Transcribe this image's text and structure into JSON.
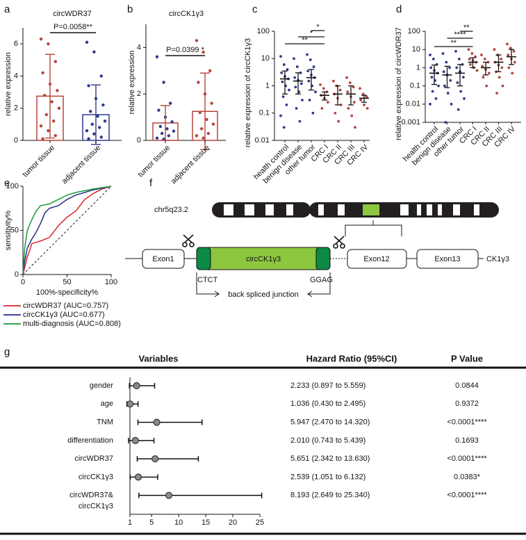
{
  "chart_data": [
    {
      "type": "bar_scatter",
      "panel_label": "a",
      "title": "circWDR37",
      "ylabel": "relative expression",
      "ylim": [
        0,
        7
      ],
      "yticks": [
        0,
        2,
        4,
        6
      ],
      "annotation": "P=0.0058**",
      "groups": [
        {
          "label": "tumor tissue",
          "color": "#b5443c",
          "dot_color": "#b5443c",
          "mean": 2.75,
          "sd": 2.6,
          "values": [
            6.3,
            6.0,
            4.9,
            4.2,
            3.5,
            3.1,
            2.8,
            2.4,
            2.0,
            1.6,
            1.2,
            0.9,
            0.6,
            0.3,
            0.1
          ]
        },
        {
          "label": "adjacent tissue",
          "color": "#2d3a8c",
          "dot_color": "#2d3a8c",
          "mean": 1.6,
          "sd": 1.85,
          "values": [
            6.1,
            5.5,
            4.0,
            3.4,
            2.6,
            2.2,
            1.8,
            1.5,
            1.2,
            1.0,
            0.8,
            0.6,
            0.4,
            0.2,
            0.1
          ]
        }
      ]
    },
    {
      "type": "bar_scatter",
      "panel_label": "b",
      "title": "circCK1γ3",
      "ylabel": "relative expression",
      "ylim": [
        0,
        5
      ],
      "yticks": [
        0,
        2,
        4
      ],
      "annotation": "P=0.0399 *",
      "groups": [
        {
          "label": "tumor tissue",
          "color": "#b5443c",
          "dot_color": "#2d3a8c",
          "mean": 0.75,
          "sd": 0.75,
          "values": [
            3.6,
            2.5,
            1.6,
            1.3,
            1.0,
            0.8,
            0.6,
            0.5,
            0.4,
            0.3,
            0.2,
            0.1,
            0.05
          ]
        },
        {
          "label": "adjacent tissue",
          "color": "#b5443c",
          "dot_color": "#b5443c",
          "mean": 1.25,
          "sd": 1.65,
          "values": [
            4.3,
            3.8,
            3.0,
            2.5,
            2.0,
            1.6,
            1.2,
            0.9,
            0.7,
            0.5,
            0.3,
            0.2,
            0.1
          ]
        }
      ]
    },
    {
      "type": "dot_log",
      "panel_label": "c",
      "ylabel": "relative expression of circCK1γ3",
      "log_scale": true,
      "ylim": [
        0.01,
        100
      ],
      "yticks": [
        0.01,
        0.1,
        1,
        10,
        100
      ],
      "annotations": [
        "*",
        "*",
        "**"
      ],
      "groups": [
        {
          "label": "health control",
          "color": "#2d3a8c",
          "mean": 1.8,
          "lower": 0.5,
          "upper": 3.5,
          "values": [
            12,
            6,
            4,
            3,
            2.2,
            1.8,
            1.4,
            1,
            0.7,
            0.4,
            0.2,
            0.08,
            0.03
          ]
        },
        {
          "label": "benign disease",
          "color": "#2d3a8c",
          "mean": 1.5,
          "lower": 0.5,
          "upper": 3,
          "values": [
            10,
            5,
            3,
            2,
            1.6,
            1.2,
            0.9,
            0.6,
            0.3,
            0.15,
            0.05
          ]
        },
        {
          "label": "other tumor",
          "color": "#2d3a8c",
          "mean": 2,
          "lower": 0.7,
          "upper": 4,
          "values": [
            14,
            9,
            5,
            3.5,
            2.5,
            2,
            1.5,
            1,
            0.6,
            0.3,
            0.1
          ]
        },
        {
          "label": "CRC I",
          "color": "#b5443c",
          "mean": 0.45,
          "lower": 0.3,
          "upper": 0.6,
          "values": [
            1.1,
            0.8,
            0.6,
            0.45,
            0.35,
            0.25,
            0.15
          ]
        },
        {
          "label": "CRC II",
          "color": "#b5443c",
          "mean": 0.5,
          "lower": 0.2,
          "upper": 1,
          "values": [
            1.5,
            1,
            0.7,
            0.5,
            0.35,
            0.2,
            0.1,
            0.05
          ]
        },
        {
          "label": "CRC III",
          "color": "#b5443c",
          "mean": 0.5,
          "lower": 0.2,
          "upper": 1,
          "values": [
            2,
            1.3,
            0.9,
            0.6,
            0.4,
            0.25,
            0.15,
            0.08,
            0.03
          ]
        },
        {
          "label": "CRC IV",
          "color": "#b5443c",
          "mean": 0.35,
          "lower": 0.25,
          "upper": 0.45,
          "values": [
            0.8,
            0.5,
            0.4,
            0.3,
            0.2,
            0.15
          ]
        }
      ]
    },
    {
      "type": "dot_log",
      "panel_label": "d",
      "ylabel": "relative expression of circWDR37",
      "log_scale": true,
      "ylim": [
        0.001,
        100
      ],
      "yticks": [
        0.001,
        0.01,
        0.1,
        1,
        10,
        100
      ],
      "annotations": [
        "**",
        "****",
        "**"
      ],
      "groups": [
        {
          "label": "health control",
          "color": "#2d3a8c",
          "mean": 0.5,
          "lower": 0.12,
          "upper": 1.4,
          "values": [
            5,
            3,
            1.5,
            1,
            0.7,
            0.5,
            0.3,
            0.2,
            0.1,
            0.05,
            0.02,
            0.01
          ]
        },
        {
          "label": "benign disease",
          "color": "#2d3a8c",
          "mean": 0.4,
          "lower": 0.08,
          "upper": 1.2,
          "values": [
            6,
            2,
            1,
            0.6,
            0.4,
            0.2,
            0.1,
            0.04,
            0.01,
            0.001
          ]
        },
        {
          "label": "other tumor",
          "color": "#2d3a8c",
          "mean": 0.5,
          "lower": 0.1,
          "upper": 1.5,
          "values": [
            8,
            3,
            1.5,
            1,
            0.6,
            0.3,
            0.15,
            0.05,
            0.02,
            0.005
          ]
        },
        {
          "label": "CRC I",
          "color": "#b5443c",
          "mean": 2,
          "lower": 1,
          "upper": 3.5,
          "values": [
            10,
            6,
            4,
            3,
            2.5,
            2,
            1.5,
            1,
            0.7
          ]
        },
        {
          "label": "CRC II",
          "color": "#b5443c",
          "mean": 1,
          "lower": 0.4,
          "upper": 2,
          "values": [
            5,
            3,
            2,
            1.2,
            0.8,
            0.5,
            0.3,
            0.1
          ]
        },
        {
          "label": "CRC III",
          "color": "#b5443c",
          "mean": 2,
          "lower": 0.6,
          "upper": 5,
          "values": [
            10,
            5,
            3,
            2,
            1.4,
            1,
            0.6,
            0.3,
            0.1,
            0.04
          ]
        },
        {
          "label": "CRC IV",
          "color": "#b5443c",
          "mean": 4,
          "lower": 1.5,
          "upper": 10,
          "values": [
            20,
            12,
            8,
            5,
            3,
            2,
            1,
            0.5
          ]
        }
      ]
    },
    {
      "type": "roc",
      "panel_label": "e",
      "xlabel": "100%-specificity%",
      "ylabel": "sensitivity%",
      "xlim": [
        0,
        100
      ],
      "ylim": [
        0,
        100
      ],
      "xticks": [
        0,
        50,
        100
      ],
      "yticks": [
        0,
        50,
        100
      ],
      "series": [
        {
          "name": "circWDR37 (AUC=0.757)",
          "color": "#d7262b",
          "x": [
            0,
            2,
            5,
            8,
            10,
            20,
            30,
            40,
            50,
            60,
            70,
            80,
            90,
            100
          ],
          "y": [
            0,
            8,
            20,
            28,
            35,
            38,
            42,
            55,
            65,
            72,
            85,
            92,
            97,
            100
          ]
        },
        {
          "name": "circCK1γ3 (AUC=0.677)",
          "color": "#1f2d86",
          "x": [
            0,
            2,
            5,
            10,
            15,
            20,
            25,
            30,
            40,
            50,
            60,
            80,
            100
          ],
          "y": [
            0,
            15,
            30,
            40,
            48,
            58,
            70,
            75,
            78,
            85,
            90,
            96,
            100
          ]
        },
        {
          "name": "multi-diagnosis (AUC=0.808)",
          "color": "#1a9a3c",
          "x": [
            0,
            2,
            5,
            10,
            15,
            20,
            30,
            40,
            50,
            60,
            80,
            100
          ],
          "y": [
            0,
            30,
            50,
            62,
            72,
            78,
            80,
            85,
            90,
            93,
            97,
            100
          ]
        }
      ]
    },
    {
      "type": "forest",
      "panel_label": "g",
      "columns": [
        "Variables",
        "Hazard Ratio (95%CI)",
        "P Value"
      ],
      "xlim": [
        1,
        25
      ],
      "xticks": [
        1,
        5,
        10,
        15,
        20,
        25
      ],
      "rows": [
        {
          "variable": [
            "gender"
          ],
          "hr": 2.233,
          "lo": 0.897,
          "hi": 5.559,
          "ci_label": "2.233 (0.897 to 5.559)",
          "p": "0.0844"
        },
        {
          "variable": [
            "age"
          ],
          "hr": 1.036,
          "lo": 0.43,
          "hi": 2.495,
          "ci_label": "1.036 (0.430 to 2.495)",
          "p": "0.9372"
        },
        {
          "variable": [
            "TNM"
          ],
          "hr": 5.947,
          "lo": 2.47,
          "hi": 14.32,
          "ci_label": "5.947 (2.470 to 14.320)",
          "p": "<0.0001****"
        },
        {
          "variable": [
            "differentiation"
          ],
          "hr": 2.01,
          "lo": 0.743,
          "hi": 5.439,
          "ci_label": "2.010 (0.743 to 5.439)",
          "p": "0.1693"
        },
        {
          "variable": [
            "circWDR37"
          ],
          "hr": 5.651,
          "lo": 2.342,
          "hi": 13.63,
          "ci_label": "5.651 (2.342 to 13.630)",
          "p": "<0.0001****"
        },
        {
          "variable": [
            "circCK1γ3"
          ],
          "hr": 2.539,
          "lo": 1.051,
          "hi": 6.132,
          "ci_label": "2.539 (1.051 to 6.132)",
          "p": "0.0383*"
        },
        {
          "variable": [
            "circWDR37&",
            "circCK1γ3"
          ],
          "hr": 8.193,
          "lo": 2.649,
          "hi": 25.34,
          "ci_label": "8.193 (2.649 to 25.340)",
          "p": "<0.0001****"
        }
      ]
    }
  ],
  "diagram": {
    "panel_label": "f",
    "chromosome": "chr5q23.2",
    "exons": [
      "Exon1",
      "Exon12",
      "Exon13"
    ],
    "circ": "circCK1γ3",
    "gene": "CK1γ3",
    "left_junction": "CTCT",
    "right_junction": "GGAG",
    "junction_label": "back spliced junction"
  }
}
